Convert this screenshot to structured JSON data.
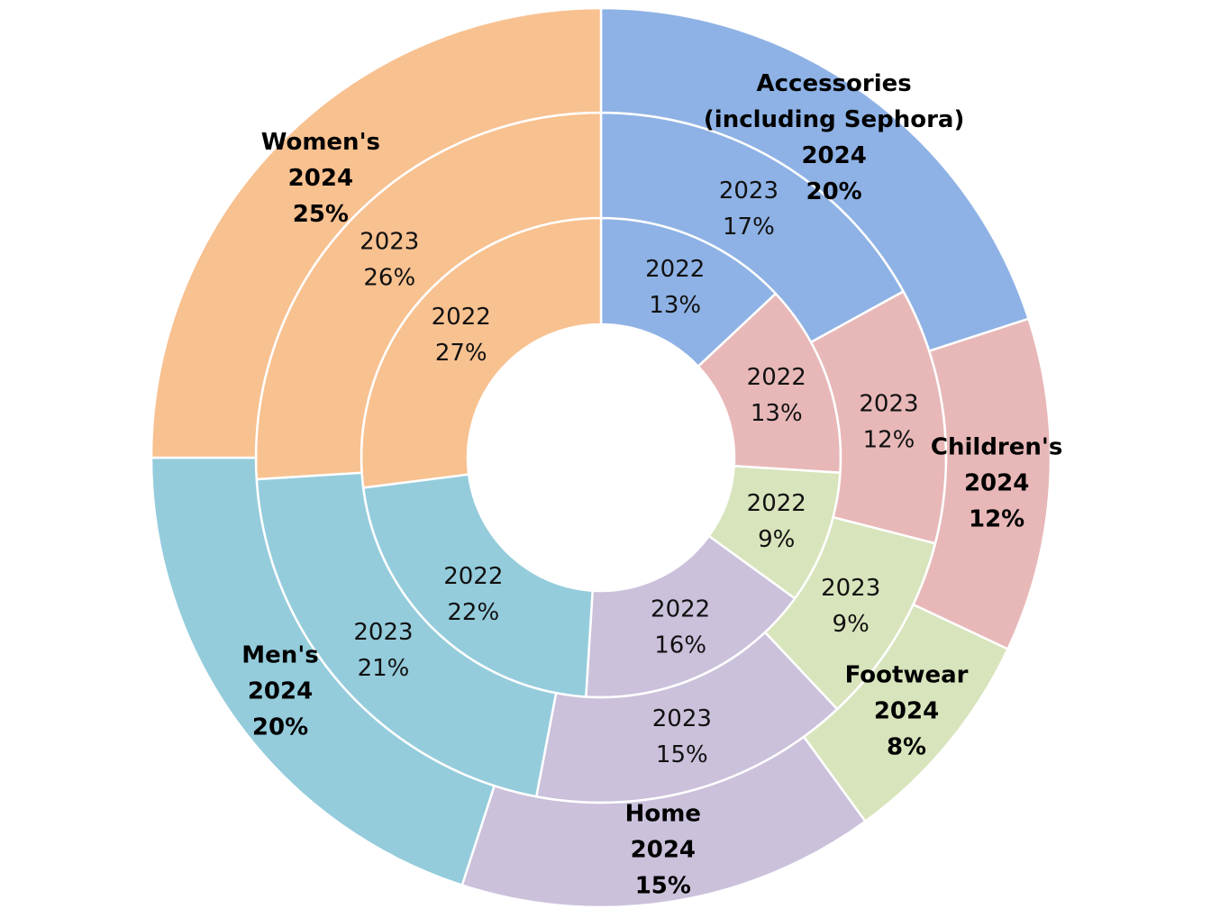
{
  "chart_data": {
    "type": "pie",
    "subtype": "multi-level donut",
    "rings": [
      {
        "name": "2022",
        "label": "2022",
        "level": "inner",
        "values": [
          {
            "category": "Accessories (including Sephora)",
            "value": 13,
            "label": "13%"
          },
          {
            "category": "Children's",
            "value": 13,
            "label": "13%"
          },
          {
            "category": "Footwear",
            "value": 9,
            "label": "9%"
          },
          {
            "category": "Home",
            "value": 16,
            "label": "16%"
          },
          {
            "category": "Men's",
            "value": 22,
            "label": "22%"
          },
          {
            "category": "Women's",
            "value": 27,
            "label": "27%"
          }
        ]
      },
      {
        "name": "2023",
        "label": "2023",
        "level": "middle",
        "values": [
          {
            "category": "Accessories (including Sephora)",
            "value": 17,
            "label": "17%"
          },
          {
            "category": "Children's",
            "value": 12,
            "label": "12%"
          },
          {
            "category": "Footwear",
            "value": 9,
            "label": "9%"
          },
          {
            "category": "Home",
            "value": 15,
            "label": "15%"
          },
          {
            "category": "Men's",
            "value": 21,
            "label": "21%"
          },
          {
            "category": "Women's",
            "value": 26,
            "label": "26%"
          }
        ]
      },
      {
        "name": "2024",
        "label": "2024",
        "level": "outer",
        "values": [
          {
            "category": "Accessories (including Sephora)",
            "value": 20,
            "label": "20%"
          },
          {
            "category": "Children's",
            "value": 12,
            "label": "12%"
          },
          {
            "category": "Footwear",
            "value": 8,
            "label": "8%"
          },
          {
            "category": "Home",
            "value": 15,
            "label": "15%"
          },
          {
            "category": "Men's",
            "value": 20,
            "label": "20%"
          },
          {
            "category": "Women's",
            "value": 25,
            "label": "25%"
          }
        ]
      }
    ],
    "categories": [
      {
        "name": "Accessories (including Sephora)",
        "title_lines": [
          "Accessories",
          "(including Sephora)"
        ],
        "color": "#8EB2E5"
      },
      {
        "name": "Children's",
        "title_lines": [
          "Children's"
        ],
        "color": "#E8B8B8"
      },
      {
        "name": "Footwear",
        "title_lines": [
          "Footwear"
        ],
        "color": "#D8E4BC"
      },
      {
        "name": "Home",
        "title_lines": [
          "Home"
        ],
        "color": "#CBC1DB"
      },
      {
        "name": "Men's",
        "title_lines": [
          "Men's"
        ],
        "color": "#94CCDC"
      },
      {
        "name": "Women's",
        "title_lines": [
          "Women's"
        ],
        "color": "#F8C190"
      }
    ],
    "start_angle": "12 o'clock",
    "direction": "clockwise",
    "legend": "none"
  }
}
